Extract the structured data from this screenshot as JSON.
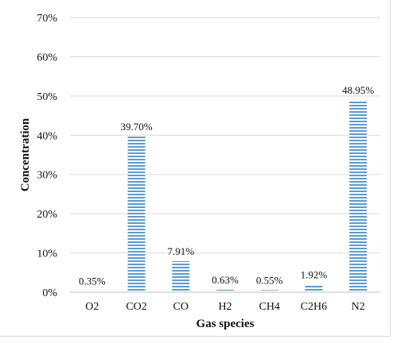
{
  "chart_data": {
    "type": "bar",
    "title": "",
    "xlabel": "Gas species",
    "ylabel": "Concentration",
    "categories": [
      "O2",
      "CO2",
      "CO",
      "H2",
      "CH4",
      "C2H6",
      "N2"
    ],
    "values": [
      0.35,
      39.7,
      7.91,
      0.63,
      0.55,
      1.92,
      48.95
    ],
    "data_labels": [
      "0.35%",
      "39.70%",
      "7.91%",
      "0.63%",
      "0.55%",
      "1.92%",
      "48.95%"
    ],
    "ylim": [
      0,
      70
    ],
    "yticks": [
      0,
      10,
      20,
      30,
      40,
      50,
      60,
      70
    ],
    "ytick_labels": [
      "0%",
      "10%",
      "20%",
      "30%",
      "40%",
      "50%",
      "60%",
      "70%"
    ],
    "grid": true,
    "bar_color": "#5b9bd5"
  }
}
